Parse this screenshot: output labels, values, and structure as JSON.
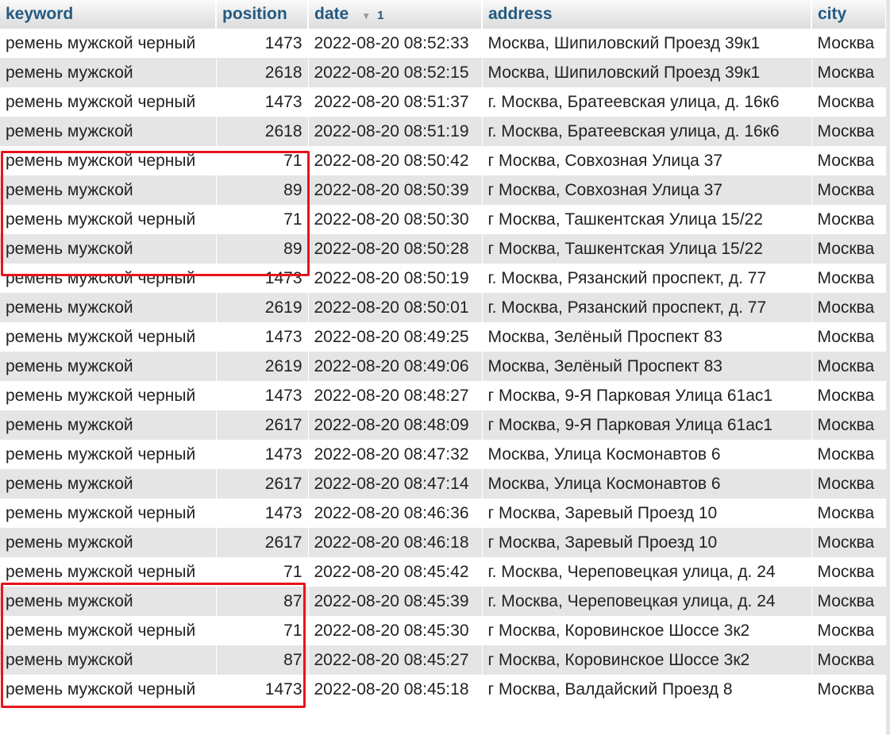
{
  "columns": {
    "keyword": "keyword",
    "position": "position",
    "date": "date",
    "date_sort_order": "1",
    "address": "address",
    "city": "city"
  },
  "sort_icon": "triangle-down-icon",
  "highlight_color": "#e8141b",
  "rows": [
    [
      "ремень мужской черный",
      "1473",
      "2022-08-20 08:52:33",
      "Москва, Шипиловский Проезд 39к1",
      "Москва"
    ],
    [
      "ремень мужской",
      "2618",
      "2022-08-20 08:52:15",
      "Москва, Шипиловский Проезд 39к1",
      "Москва"
    ],
    [
      "ремень мужской черный",
      "1473",
      "2022-08-20 08:51:37",
      "г. Москва, Братеевская улица, д. 16к6",
      "Москва"
    ],
    [
      "ремень мужской",
      "2618",
      "2022-08-20 08:51:19",
      "г. Москва, Братеевская улица, д. 16к6",
      "Москва"
    ],
    [
      "ремень мужской черный",
      "71",
      "2022-08-20 08:50:42",
      "г Москва, Совхозная Улица 37",
      "Москва"
    ],
    [
      "ремень мужской",
      "89",
      "2022-08-20 08:50:39",
      "г Москва, Совхозная Улица 37",
      "Москва"
    ],
    [
      "ремень мужской черный",
      "71",
      "2022-08-20 08:50:30",
      "г Москва, Ташкентская Улица 15/22",
      "Москва"
    ],
    [
      "ремень мужской",
      "89",
      "2022-08-20 08:50:28",
      "г Москва, Ташкентская Улица 15/22",
      "Москва"
    ],
    [
      "ремень мужской черный",
      "1473",
      "2022-08-20 08:50:19",
      "г. Москва, Рязанский проспект, д. 77",
      "Москва"
    ],
    [
      "ремень мужской",
      "2619",
      "2022-08-20 08:50:01",
      "г. Москва, Рязанский проспект, д. 77",
      "Москва"
    ],
    [
      "ремень мужской черный",
      "1473",
      "2022-08-20 08:49:25",
      "Москва, Зелёный Проспект 83",
      "Москва"
    ],
    [
      "ремень мужской",
      "2619",
      "2022-08-20 08:49:06",
      "Москва, Зелёный Проспект 83",
      "Москва"
    ],
    [
      "ремень мужской черный",
      "1473",
      "2022-08-20 08:48:27",
      "г Москва, 9-Я Парковая Улица 61ас1",
      "Москва"
    ],
    [
      "ремень мужской",
      "2617",
      "2022-08-20 08:48:09",
      "г Москва, 9-Я Парковая Улица 61ас1",
      "Москва"
    ],
    [
      "ремень мужской черный",
      "1473",
      "2022-08-20 08:47:32",
      "Москва, Улица Космонавтов 6",
      "Москва"
    ],
    [
      "ремень мужской",
      "2617",
      "2022-08-20 08:47:14",
      "Москва, Улица Космонавтов 6",
      "Москва"
    ],
    [
      "ремень мужской черный",
      "1473",
      "2022-08-20 08:46:36",
      "г Москва, Заревый Проезд 10",
      "Москва"
    ],
    [
      "ремень мужской",
      "2617",
      "2022-08-20 08:46:18",
      "г Москва, Заревый Проезд 10",
      "Москва"
    ],
    [
      "ремень мужской черный",
      "71",
      "2022-08-20 08:45:42",
      "г. Москва, Череповецкая улица, д. 24",
      "Москва"
    ],
    [
      "ремень мужской",
      "87",
      "2022-08-20 08:45:39",
      "г. Москва, Череповецкая улица, д. 24",
      "Москва"
    ],
    [
      "ремень мужской черный",
      "71",
      "2022-08-20 08:45:30",
      "г Москва, Коровинское Шоссе 3к2",
      "Москва"
    ],
    [
      "ремень мужской",
      "87",
      "2022-08-20 08:45:27",
      "г Москва, Коровинское Шоссе 3к2",
      "Москва"
    ],
    [
      "ремень мужской черный",
      "1473",
      "2022-08-20 08:45:18",
      "г Москва, Валдайский Проезд 8",
      "Москва"
    ]
  ]
}
